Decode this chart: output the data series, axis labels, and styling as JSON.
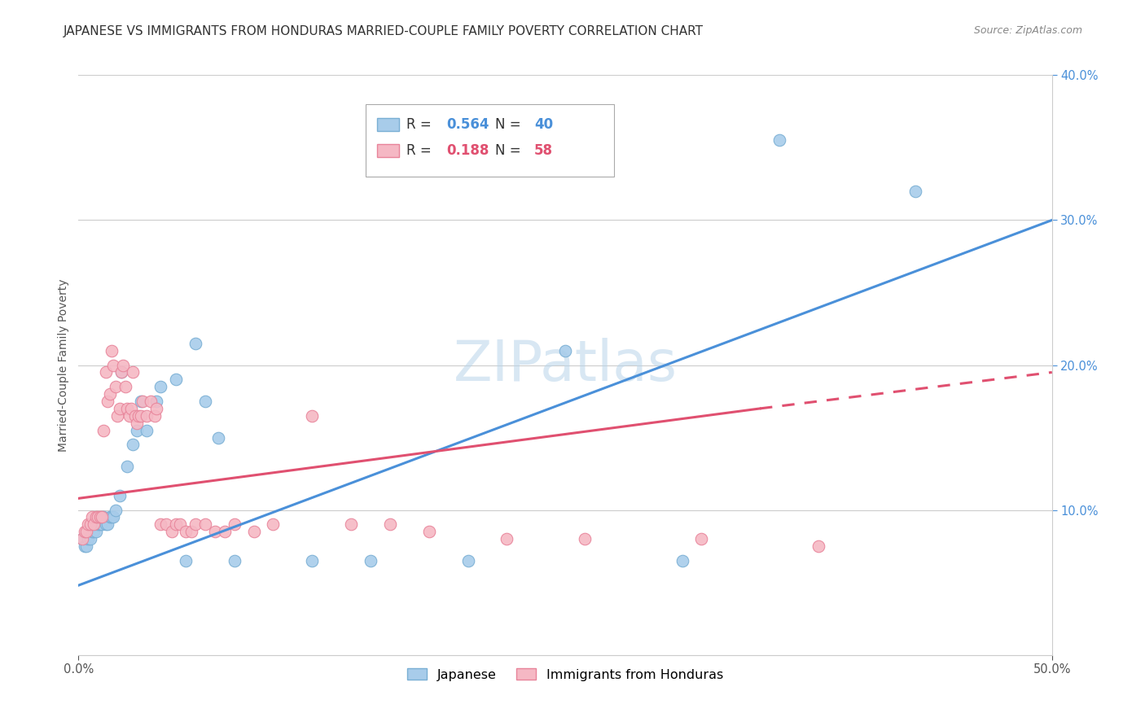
{
  "title": "JAPANESE VS IMMIGRANTS FROM HONDURAS MARRIED-COUPLE FAMILY POVERTY CORRELATION CHART",
  "source": "Source: ZipAtlas.com",
  "ylabel": "Married-Couple Family Poverty",
  "xlim": [
    0.0,
    0.5
  ],
  "ylim": [
    0.0,
    0.4
  ],
  "xticks": [
    0.0,
    0.5
  ],
  "xticklabels": [
    "0.0%",
    "50.0%"
  ],
  "yticks_right": [
    0.1,
    0.2,
    0.3,
    0.4
  ],
  "yticklabels_right": [
    "10.0%",
    "20.0%",
    "30.0%",
    "40.0%"
  ],
  "watermark": "ZIPatlas",
  "title_fontsize": 11,
  "axis_fontsize": 10,
  "tick_fontsize": 10.5,
  "japanese": {
    "name": "Japanese",
    "R": 0.564,
    "N": 40,
    "color": "#A8CCEA",
    "edge_color": "#7AAFD4",
    "line_color": "#4A90D9",
    "x": [
      0.002,
      0.003,
      0.004,
      0.005,
      0.006,
      0.007,
      0.008,
      0.009,
      0.01,
      0.011,
      0.012,
      0.013,
      0.014,
      0.015,
      0.016,
      0.017,
      0.018,
      0.019,
      0.021,
      0.022,
      0.025,
      0.028,
      0.03,
      0.032,
      0.035,
      0.04,
      0.042,
      0.05,
      0.055,
      0.06,
      0.065,
      0.072,
      0.08,
      0.12,
      0.15,
      0.2,
      0.25,
      0.31,
      0.36,
      0.43
    ],
    "y": [
      0.08,
      0.075,
      0.075,
      0.08,
      0.08,
      0.085,
      0.085,
      0.085,
      0.09,
      0.09,
      0.09,
      0.095,
      0.09,
      0.09,
      0.095,
      0.095,
      0.095,
      0.1,
      0.11,
      0.195,
      0.13,
      0.145,
      0.155,
      0.175,
      0.155,
      0.175,
      0.185,
      0.19,
      0.065,
      0.215,
      0.175,
      0.15,
      0.065,
      0.065,
      0.065,
      0.065,
      0.21,
      0.065,
      0.355,
      0.32
    ]
  },
  "honduras": {
    "name": "Immigrants from Honduras",
    "R": 0.188,
    "N": 58,
    "color": "#F5B8C4",
    "edge_color": "#E8849A",
    "line_color": "#E05070",
    "x": [
      0.002,
      0.003,
      0.004,
      0.005,
      0.006,
      0.007,
      0.008,
      0.009,
      0.01,
      0.011,
      0.012,
      0.013,
      0.014,
      0.015,
      0.016,
      0.017,
      0.018,
      0.019,
      0.02,
      0.021,
      0.022,
      0.023,
      0.024,
      0.025,
      0.026,
      0.027,
      0.028,
      0.029,
      0.03,
      0.031,
      0.032,
      0.033,
      0.035,
      0.037,
      0.039,
      0.04,
      0.042,
      0.045,
      0.048,
      0.05,
      0.052,
      0.055,
      0.058,
      0.06,
      0.065,
      0.07,
      0.075,
      0.08,
      0.09,
      0.1,
      0.12,
      0.14,
      0.16,
      0.18,
      0.22,
      0.26,
      0.32,
      0.38
    ],
    "y": [
      0.08,
      0.085,
      0.085,
      0.09,
      0.09,
      0.095,
      0.09,
      0.095,
      0.095,
      0.095,
      0.095,
      0.155,
      0.195,
      0.175,
      0.18,
      0.21,
      0.2,
      0.185,
      0.165,
      0.17,
      0.195,
      0.2,
      0.185,
      0.17,
      0.165,
      0.17,
      0.195,
      0.165,
      0.16,
      0.165,
      0.165,
      0.175,
      0.165,
      0.175,
      0.165,
      0.17,
      0.09,
      0.09,
      0.085,
      0.09,
      0.09,
      0.085,
      0.085,
      0.09,
      0.09,
      0.085,
      0.085,
      0.09,
      0.085,
      0.09,
      0.165,
      0.09,
      0.09,
      0.085,
      0.08,
      0.08,
      0.08,
      0.075
    ]
  },
  "japanese_line": {
    "x0": 0.0,
    "y0": 0.048,
    "x1": 0.5,
    "y1": 0.3
  },
  "honduras_line_solid": {
    "x0": 0.0,
    "y0": 0.108,
    "x1": 0.35,
    "y1": 0.17
  },
  "honduras_line_dash": {
    "x0": 0.35,
    "y0": 0.17,
    "x1": 0.5,
    "y1": 0.195
  }
}
